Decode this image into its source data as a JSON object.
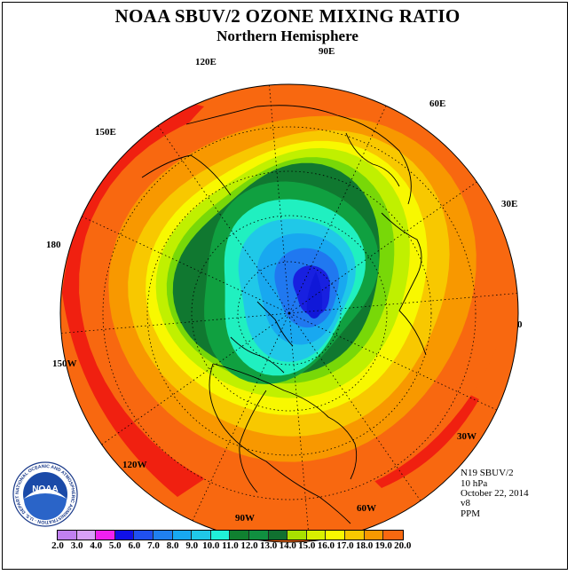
{
  "header": {
    "title": "NOAA SBUV/2 OZONE MIXING RATIO",
    "subtitle": "Northern Hemisphere"
  },
  "map": {
    "projection": "north polar stereographic",
    "longitude_labels": [
      "90E",
      "60E",
      "30E",
      "0",
      "30W",
      "60W",
      "90W",
      "120W",
      "150W",
      "180",
      "150E",
      "120E"
    ],
    "contour_levels": [
      {
        "level": "18.0-19.0",
        "color": "#f02010"
      },
      {
        "level": "17.0-18.0",
        "color": "#f86810"
      },
      {
        "level": "16.0-17.0",
        "color": "#f89800"
      },
      {
        "level": "15.0-16.0",
        "color": "#f8c800"
      },
      {
        "level": "14.0-15.0",
        "color": "#f8f800"
      },
      {
        "level": "13.0-14.0",
        "color": "#c0f000"
      },
      {
        "level": "12.0-13.0",
        "color": "#78d808"
      },
      {
        "level": "11.0-12.0",
        "color": "#107830"
      },
      {
        "level": "10.0-11.0",
        "color": "#10a040"
      },
      {
        "level": "9.0-10.0",
        "color": "#20f0c0"
      },
      {
        "level": "8.0-9.0",
        "color": "#20c8e8"
      },
      {
        "level": "7.0-8.0",
        "color": "#18a8f0"
      },
      {
        "level": "6.0-7.0",
        "color": "#2078f0"
      },
      {
        "level": "5.0-6.0",
        "color": "#1820e0"
      }
    ]
  },
  "info": {
    "instrument": "N19 SBUV/2",
    "pressure": "10 hPa",
    "date": "October 22, 2014",
    "version": "v8",
    "units": "PPM"
  },
  "colorbar": {
    "ticks": [
      "2.0",
      "3.0",
      "4.0",
      "5.0",
      "6.0",
      "7.0",
      "8.0",
      "9.0",
      "10.0",
      "11.0",
      "12.0",
      "13.0",
      "14.0",
      "15.0",
      "16.0",
      "17.0",
      "18.0",
      "19.0",
      "20.0"
    ],
    "colors": [
      "#c080f0",
      "#d8a0f8",
      "#f020f0",
      "#1010e8",
      "#2050f0",
      "#2080f0",
      "#18a8f0",
      "#20c8e8",
      "#20f0d8",
      "#108030",
      "#109040",
      "#107030",
      "#a8e000",
      "#d8f000",
      "#f8f800",
      "#f8c800",
      "#f89800",
      "#f86810",
      "#f02010",
      "#8b5a3c"
    ]
  },
  "logo": {
    "text": "NOAA",
    "ring_text": "NATIONAL OCEANIC AND ATMOSPHERIC ADMINISTRATION · U.S. DEPARTMENT OF COMMERCE"
  }
}
